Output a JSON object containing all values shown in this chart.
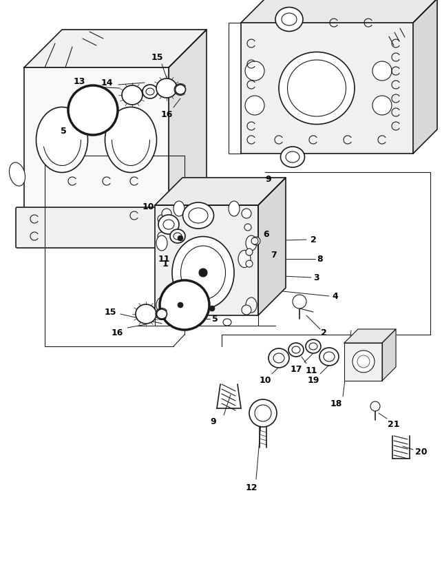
{
  "background_color": "#ffffff",
  "line_color": "#1a1a1a",
  "figsize": [
    6.42,
    8.38
  ],
  "dpi": 100
}
